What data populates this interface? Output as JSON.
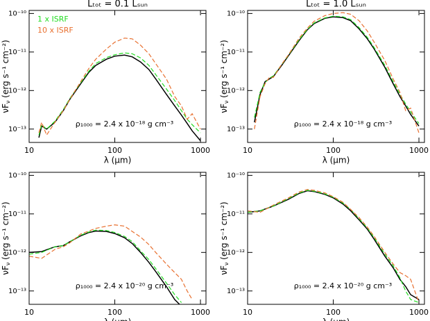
{
  "chart_data": [
    {
      "type": "line",
      "title": "Lₜₒₜ = 0.1 Lₛᵤₙ",
      "annotation": "ρ₁₀₀₀ = 2.4 x 10⁻¹⁸ g cm⁻³",
      "xlabel": "λ (μm)",
      "ylabel": [
        "νF",
        "ν",
        " (erg s⁻¹ cm⁻²)"
      ],
      "log_x": true,
      "log_y": true,
      "legend": "upper left",
      "xlim": [
        10,
        1160
      ],
      "ylim": [
        4.5e-14,
        1.2e-10
      ],
      "xticks": [
        10,
        100,
        1000
      ],
      "yticks": [
        {
          "value": 1e-13,
          "label": "10⁻¹³"
        },
        {
          "value": 1e-12,
          "label": "10⁻¹²"
        },
        {
          "value": 1e-11,
          "label": "10⁻¹¹"
        },
        {
          "value": 1e-10,
          "label": "10⁻¹⁰"
        }
      ],
      "x": [
        13,
        14,
        16,
        20,
        25,
        30,
        40,
        50,
        60,
        80,
        100,
        130,
        160,
        200,
        250,
        300,
        400,
        500,
        600,
        700,
        800,
        1000
      ],
      "series": [
        {
          "color": "#000000",
          "dash": false,
          "values": [
            6e-14,
            1.2e-13,
            1e-13,
            1.5e-13,
            3e-13,
            6e-13,
            1.5e-12,
            3e-12,
            4.5e-12,
            6.5e-12,
            7.8e-12,
            8.3e-12,
            7.5e-12,
            5.5e-12,
            3.5e-12,
            2e-12,
            8e-13,
            4e-13,
            2.3e-13,
            1.4e-13,
            9e-14,
            5e-14
          ]
        },
        {
          "name": "1 x ISRF",
          "color": "#22dd22",
          "dash": true,
          "values": [
            7e-14,
            1.3e-13,
            1e-13,
            1.6e-13,
            3.2e-13,
            6.3e-13,
            1.6e-12,
            3.2e-12,
            5e-12,
            7.2e-12,
            8.5e-12,
            9.5e-12,
            9e-12,
            7e-12,
            4.5e-12,
            2.6e-12,
            1.1e-12,
            5.5e-13,
            3e-13,
            1.8e-13,
            1.3e-13,
            8e-14
          ]
        },
        {
          "name": "10 x ISRF",
          "color": "#e87030",
          "dash": true,
          "values": [
            8e-14,
            1.5e-13,
            7e-14,
            1.5e-13,
            3e-13,
            6e-13,
            1.7e-12,
            3.8e-12,
            6.5e-12,
            1.2e-11,
            1.8e-11,
            2.3e-11,
            2.2e-11,
            1.5e-11,
            9e-12,
            5e-12,
            2e-12,
            7e-13,
            4e-13,
            1.8e-13,
            2.5e-13,
            1e-13
          ]
        }
      ]
    },
    {
      "type": "line",
      "title": "Lₜₒₜ = 1.0 Lₛᵤₙ",
      "annotation": "ρ₁₀₀₀ = 2.4 x 10⁻¹⁸ g cm⁻³",
      "xlabel": "λ (μm)",
      "ylabel": [
        "νF",
        "ν",
        " (erg s⁻¹ cm⁻²)"
      ],
      "log_x": true,
      "log_y": true,
      "xlim": [
        10,
        1160
      ],
      "ylim": [
        4.5e-14,
        1.2e-10
      ],
      "xticks": [
        10,
        100,
        1000
      ],
      "yticks": [
        {
          "value": 1e-13,
          "label": "10⁻¹³"
        },
        {
          "value": 1e-12,
          "label": "10⁻¹²"
        },
        {
          "value": 1e-11,
          "label": "10⁻¹¹"
        },
        {
          "value": 1e-10,
          "label": "10⁻¹⁰"
        }
      ],
      "x": [
        12,
        14,
        16,
        18,
        20,
        25,
        30,
        40,
        50,
        60,
        80,
        100,
        130,
        160,
        200,
        250,
        300,
        400,
        500,
        600,
        700,
        800,
        1000
      ],
      "series": [
        {
          "color": "#000000",
          "dash": false,
          "values": [
            1.5e-13,
            8e-13,
            1.7e-12,
            2e-12,
            2.3e-12,
            4.5e-12,
            8e-12,
            2e-11,
            3.8e-11,
            5.5e-11,
            7.5e-11,
            8.2e-11,
            7.8e-11,
            6.5e-11,
            4e-11,
            2.2e-11,
            1.2e-11,
            4e-12,
            1.5e-12,
            7e-13,
            4e-13,
            2.4e-13,
            1.2e-13
          ]
        },
        {
          "name": "1 x ISRF",
          "color": "#22dd22",
          "dash": true,
          "values": [
            2e-13,
            9e-13,
            1.6e-12,
            2.1e-12,
            2.4e-12,
            4.7e-12,
            8.3e-12,
            2.1e-11,
            3.9e-11,
            5.7e-11,
            7.7e-11,
            8.5e-11,
            8.2e-11,
            6.9e-11,
            4.3e-11,
            2.4e-11,
            1.3e-11,
            4.5e-12,
            1.7e-12,
            8e-13,
            4.5e-13,
            2.8e-13,
            1.4e-13
          ]
        },
        {
          "name": "10 x ISRF",
          "color": "#e87030",
          "dash": true,
          "values": [
            1e-13,
            7e-13,
            1.5e-12,
            2.2e-12,
            2.2e-12,
            4.8e-12,
            8.5e-12,
            2.3e-11,
            4.2e-11,
            6.3e-11,
            8.8e-11,
            1e-10,
            1.05e-10,
            9.5e-11,
            6.5e-11,
            3.5e-11,
            1.8e-11,
            6e-12,
            2e-12,
            9e-13,
            3e-13,
            3.5e-13,
            8e-14
          ]
        }
      ]
    },
    {
      "type": "line",
      "annotation": "ρ₁₀₀₀ = 2.4 x 10⁻²⁰ g cm⁻³",
      "xlabel": "λ (μm)",
      "ylabel": [
        "νF",
        "ν",
        " (erg s⁻¹ cm⁻²)"
      ],
      "log_x": true,
      "log_y": true,
      "xlim": [
        10,
        1160
      ],
      "ylim": [
        4.5e-14,
        1.2e-10
      ],
      "xticks": [
        10,
        100,
        1000
      ],
      "yticks": [
        {
          "value": 1e-13,
          "label": "10⁻¹³"
        },
        {
          "value": 1e-12,
          "label": "10⁻¹²"
        },
        {
          "value": 1e-11,
          "label": "10⁻¹¹"
        },
        {
          "value": 1e-10,
          "label": "10⁻¹⁰"
        }
      ],
      "x": [
        10,
        14,
        20,
        25,
        30,
        40,
        50,
        60,
        80,
        100,
        130,
        160,
        200,
        250,
        300,
        400,
        500,
        600,
        700,
        800
      ],
      "series": [
        {
          "color": "#000000",
          "dash": false,
          "values": [
            1e-12,
            1.05e-12,
            1.4e-12,
            1.5e-12,
            1.9e-12,
            2.7e-12,
            3.3e-12,
            3.6e-12,
            3.5e-12,
            3.1e-12,
            2.4e-12,
            1.7e-12,
            1e-12,
            5.5e-13,
            3.2e-13,
            1.3e-13,
            6e-14,
            4e-14,
            null,
            null
          ]
        },
        {
          "name": "1 x ISRF",
          "color": "#22dd22",
          "dash": true,
          "values": [
            9e-13,
            1e-12,
            1.4e-12,
            1.5e-12,
            1.9e-12,
            2.8e-12,
            3.4e-12,
            3.8e-12,
            3.7e-12,
            3.3e-12,
            2.6e-12,
            1.9e-12,
            1.1e-12,
            6.5e-13,
            3.8e-13,
            1.6e-13,
            8e-14,
            5e-14,
            null,
            null
          ]
        },
        {
          "name": "10 x ISRF",
          "color": "#e87030",
          "dash": true,
          "values": [
            8e-13,
            7e-13,
            1.2e-12,
            1.4e-12,
            1.8e-12,
            3e-12,
            3.6e-12,
            4.2e-12,
            4.8e-12,
            5.2e-12,
            4.8e-12,
            3.5e-12,
            2.5e-12,
            1.6e-12,
            1e-12,
            5e-13,
            3e-13,
            2e-13,
            1e-13,
            6e-14
          ]
        }
      ]
    },
    {
      "type": "line",
      "annotation": "ρ₁₀₀₀ = 2.4 x 10⁻²⁰ g cm⁻³",
      "xlabel": "λ (μm)",
      "ylabel": [
        "νF",
        "ν",
        " (erg s⁻¹ cm⁻²)"
      ],
      "log_x": true,
      "log_y": true,
      "xlim": [
        10,
        1160
      ],
      "ylim": [
        4.5e-14,
        1.2e-10
      ],
      "xticks": [
        10,
        100,
        1000
      ],
      "yticks": [
        {
          "value": 1e-13,
          "label": "10⁻¹³"
        },
        {
          "value": 1e-12,
          "label": "10⁻¹²"
        },
        {
          "value": 1e-11,
          "label": "10⁻¹¹"
        },
        {
          "value": 1e-10,
          "label": "10⁻¹⁰"
        }
      ],
      "x": [
        10,
        14,
        20,
        30,
        40,
        50,
        60,
        80,
        100,
        130,
        160,
        200,
        250,
        300,
        400,
        500,
        600,
        700,
        800,
        1000
      ],
      "series": [
        {
          "color": "#000000",
          "dash": false,
          "values": [
            1.1e-11,
            1.2e-11,
            1.6e-11,
            2.4e-11,
            3.4e-11,
            4e-11,
            3.8e-11,
            3.2e-11,
            2.6e-11,
            1.8e-11,
            1.2e-11,
            7e-12,
            4e-12,
            2.2e-12,
            8e-13,
            4e-13,
            2e-13,
            1.3e-13,
            8e-14,
            6e-14
          ]
        },
        {
          "name": "1 x ISRF",
          "color": "#22dd22",
          "dash": true,
          "values": [
            1.1e-11,
            1.2e-11,
            1.6e-11,
            2.5e-11,
            3.5e-11,
            4.1e-11,
            3.9e-11,
            3.3e-11,
            2.7e-11,
            1.9e-11,
            1.3e-11,
            7.5e-12,
            4.3e-12,
            2.4e-12,
            9e-13,
            4.5e-13,
            2.2e-13,
            1e-13,
            6e-14,
            5e-14
          ]
        },
        {
          "name": "10 x ISRF",
          "color": "#e87030",
          "dash": true,
          "values": [
            1.2e-11,
            1.1e-11,
            1.7e-11,
            2.6e-11,
            3.7e-11,
            4.3e-11,
            4.1e-11,
            3.5e-11,
            2.8e-11,
            2e-11,
            1.3e-11,
            8e-12,
            4.5e-12,
            2.6e-12,
            1e-12,
            5e-13,
            3e-13,
            2.5e-13,
            2e-13,
            5e-14
          ]
        }
      ]
    }
  ]
}
